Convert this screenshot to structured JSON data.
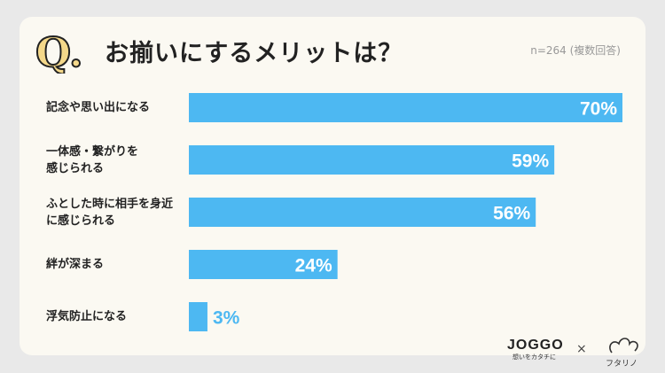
{
  "header": {
    "q_mark": "Q.",
    "title": "お揃いにするメリットは？",
    "sample": "n=264 (複数回答)"
  },
  "chart_data": {
    "type": "bar",
    "orientation": "horizontal",
    "categories": [
      "記念や思い出になる",
      "一体感・繋がりを\n感じられる",
      "ふとした時に相手を身近\nに感じられる",
      "絆が深まる",
      "浮気防止になる"
    ],
    "values": [
      70,
      59,
      56,
      24,
      3
    ],
    "value_suffix": "%",
    "xlim": [
      0,
      70
    ],
    "title": "お揃いにするメリットは？",
    "bar_color": "#4db8f2"
  },
  "footer": {
    "brand": "JOGGO",
    "brand_sub": "想いをカタチに",
    "times": "×",
    "partner": "フタリノ"
  },
  "colors": {
    "accent_gold": "#e0ac30",
    "bar": "#4db8f2",
    "background": "#fbf9f2"
  }
}
